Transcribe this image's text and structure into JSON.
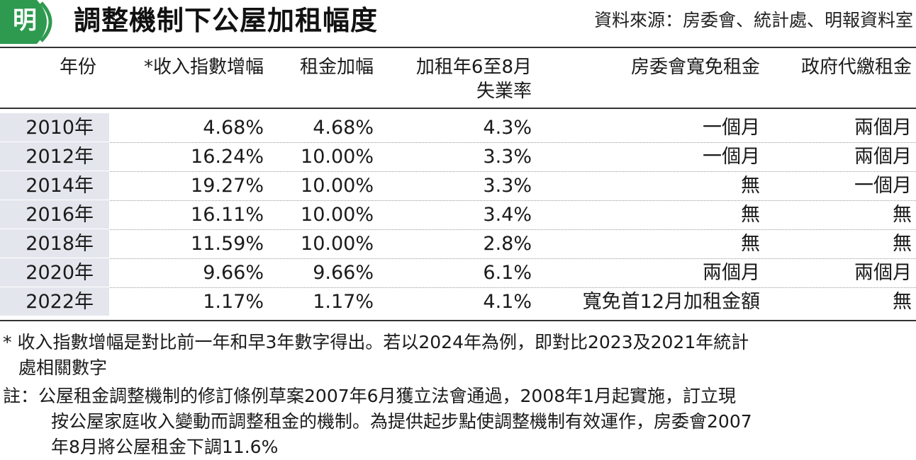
{
  "header": {
    "logo_text": "明",
    "title": "調整機制下公屋加租幅度",
    "source": "資料來源：房委會、統計處、明報資料室"
  },
  "columns": {
    "year": "年份",
    "income_index": "*收入指數增幅",
    "rent_increase": "租金加幅",
    "unemployment_line1": "加租年6至8月",
    "unemployment_line2": "失業率",
    "ha_waiver": "房委會寬免租金",
    "gov_pay": "政府代繳租金"
  },
  "rows": [
    {
      "year": "2010年",
      "income_index": "4.68%",
      "rent_increase": "4.68%",
      "unemployment": "4.3%",
      "ha_waiver": "一個月",
      "gov_pay": "兩個月"
    },
    {
      "year": "2012年",
      "income_index": "16.24%",
      "rent_increase": "10.00%",
      "unemployment": "3.3%",
      "ha_waiver": "一個月",
      "gov_pay": "兩個月"
    },
    {
      "year": "2014年",
      "income_index": "19.27%",
      "rent_increase": "10.00%",
      "unemployment": "3.3%",
      "ha_waiver": "無",
      "gov_pay": "一個月"
    },
    {
      "year": "2016年",
      "income_index": "16.11%",
      "rent_increase": "10.00%",
      "unemployment": "3.4%",
      "ha_waiver": "無",
      "gov_pay": "無"
    },
    {
      "year": "2018年",
      "income_index": "11.59%",
      "rent_increase": "10.00%",
      "unemployment": "2.8%",
      "ha_waiver": "無",
      "gov_pay": "無"
    },
    {
      "year": "2020年",
      "income_index": "9.66%",
      "rent_increase": "9.66%",
      "unemployment": "6.1%",
      "ha_waiver": "兩個月",
      "gov_pay": "兩個月"
    },
    {
      "year": "2022年",
      "income_index": "1.17%",
      "rent_increase": "1.17%",
      "unemployment": "4.1%",
      "ha_waiver": "寬免首12月加租金額",
      "gov_pay": "無"
    }
  ],
  "notes": {
    "footnote_line1": "* 收入指數增幅是對比前一年和早3年數字得出。若以2024年為例，即對比2023及2021年統計",
    "footnote_line2": "處相關數字",
    "remark_line1": "註：公屋租金調整機制的修訂條例草案2007年6月獲立法會通過，2008年1月起實施，訂立現",
    "remark_line2": "按公屋家庭收入變動而調整租金的機制。為提供起步點使調整機制有效運作，房委會2007",
    "remark_line3": "年8月將公屋租金下調11.6%"
  },
  "colors": {
    "logo_green": "#2e9a4f",
    "year_cell_bg": "#e3e6ec",
    "rule": "#333333"
  }
}
